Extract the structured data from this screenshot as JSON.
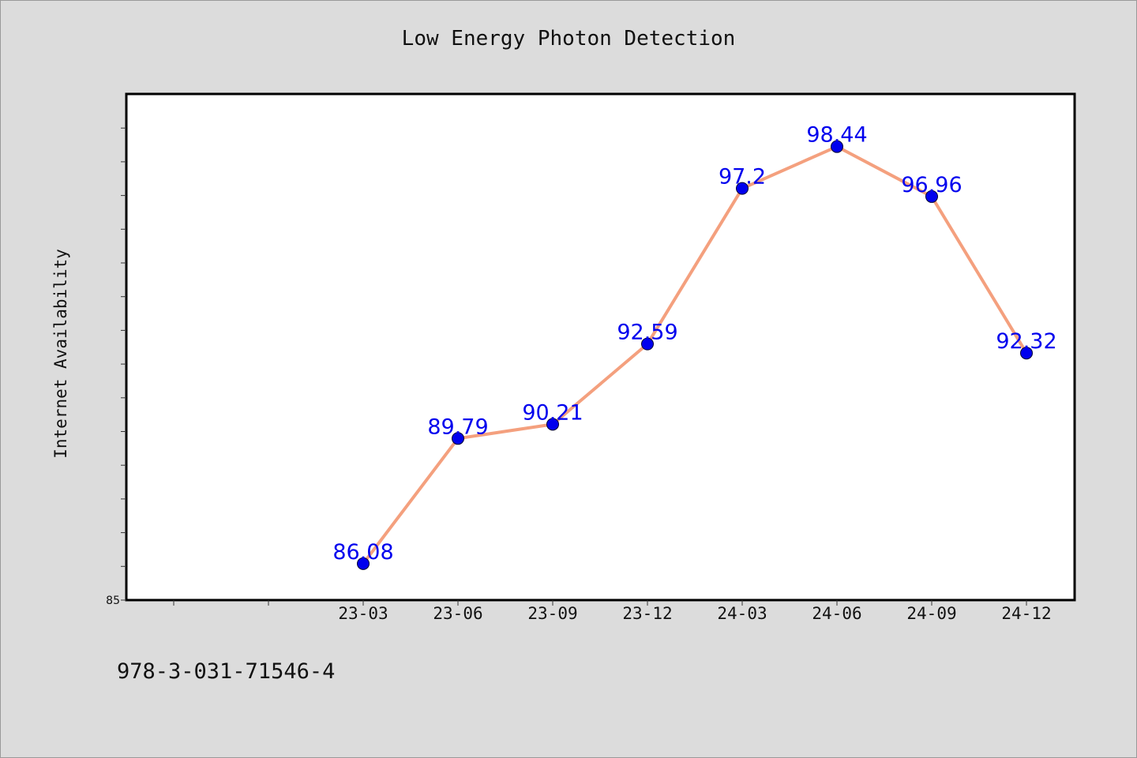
{
  "chart_data": {
    "type": "line",
    "title": "Low Energy Photon Detection",
    "xlabel": "",
    "ylabel": "Internet Availability",
    "categories": [
      "23-03",
      "23-06",
      "23-09",
      "23-12",
      "24-03",
      "24-06",
      "24-09",
      "24-12"
    ],
    "values": [
      86.08,
      89.79,
      90.21,
      92.59,
      97.2,
      98.44,
      96.96,
      92.32
    ],
    "value_labels": [
      "86.08",
      "89.79",
      "90.21",
      "92.59",
      "97.2",
      "98.44",
      "96.96",
      "92.32"
    ],
    "ylim": [
      85,
      100
    ],
    "y_tick_labels": [
      "85"
    ],
    "grid": false,
    "legend": "none",
    "colors": {
      "line": "#f4a07e",
      "marker": "#0000ee",
      "data_label": "#0000ee",
      "plot_background": "#ffffff",
      "page_background": "#dcdcdc"
    }
  },
  "footer": {
    "code": "978-3-031-71546-4"
  }
}
